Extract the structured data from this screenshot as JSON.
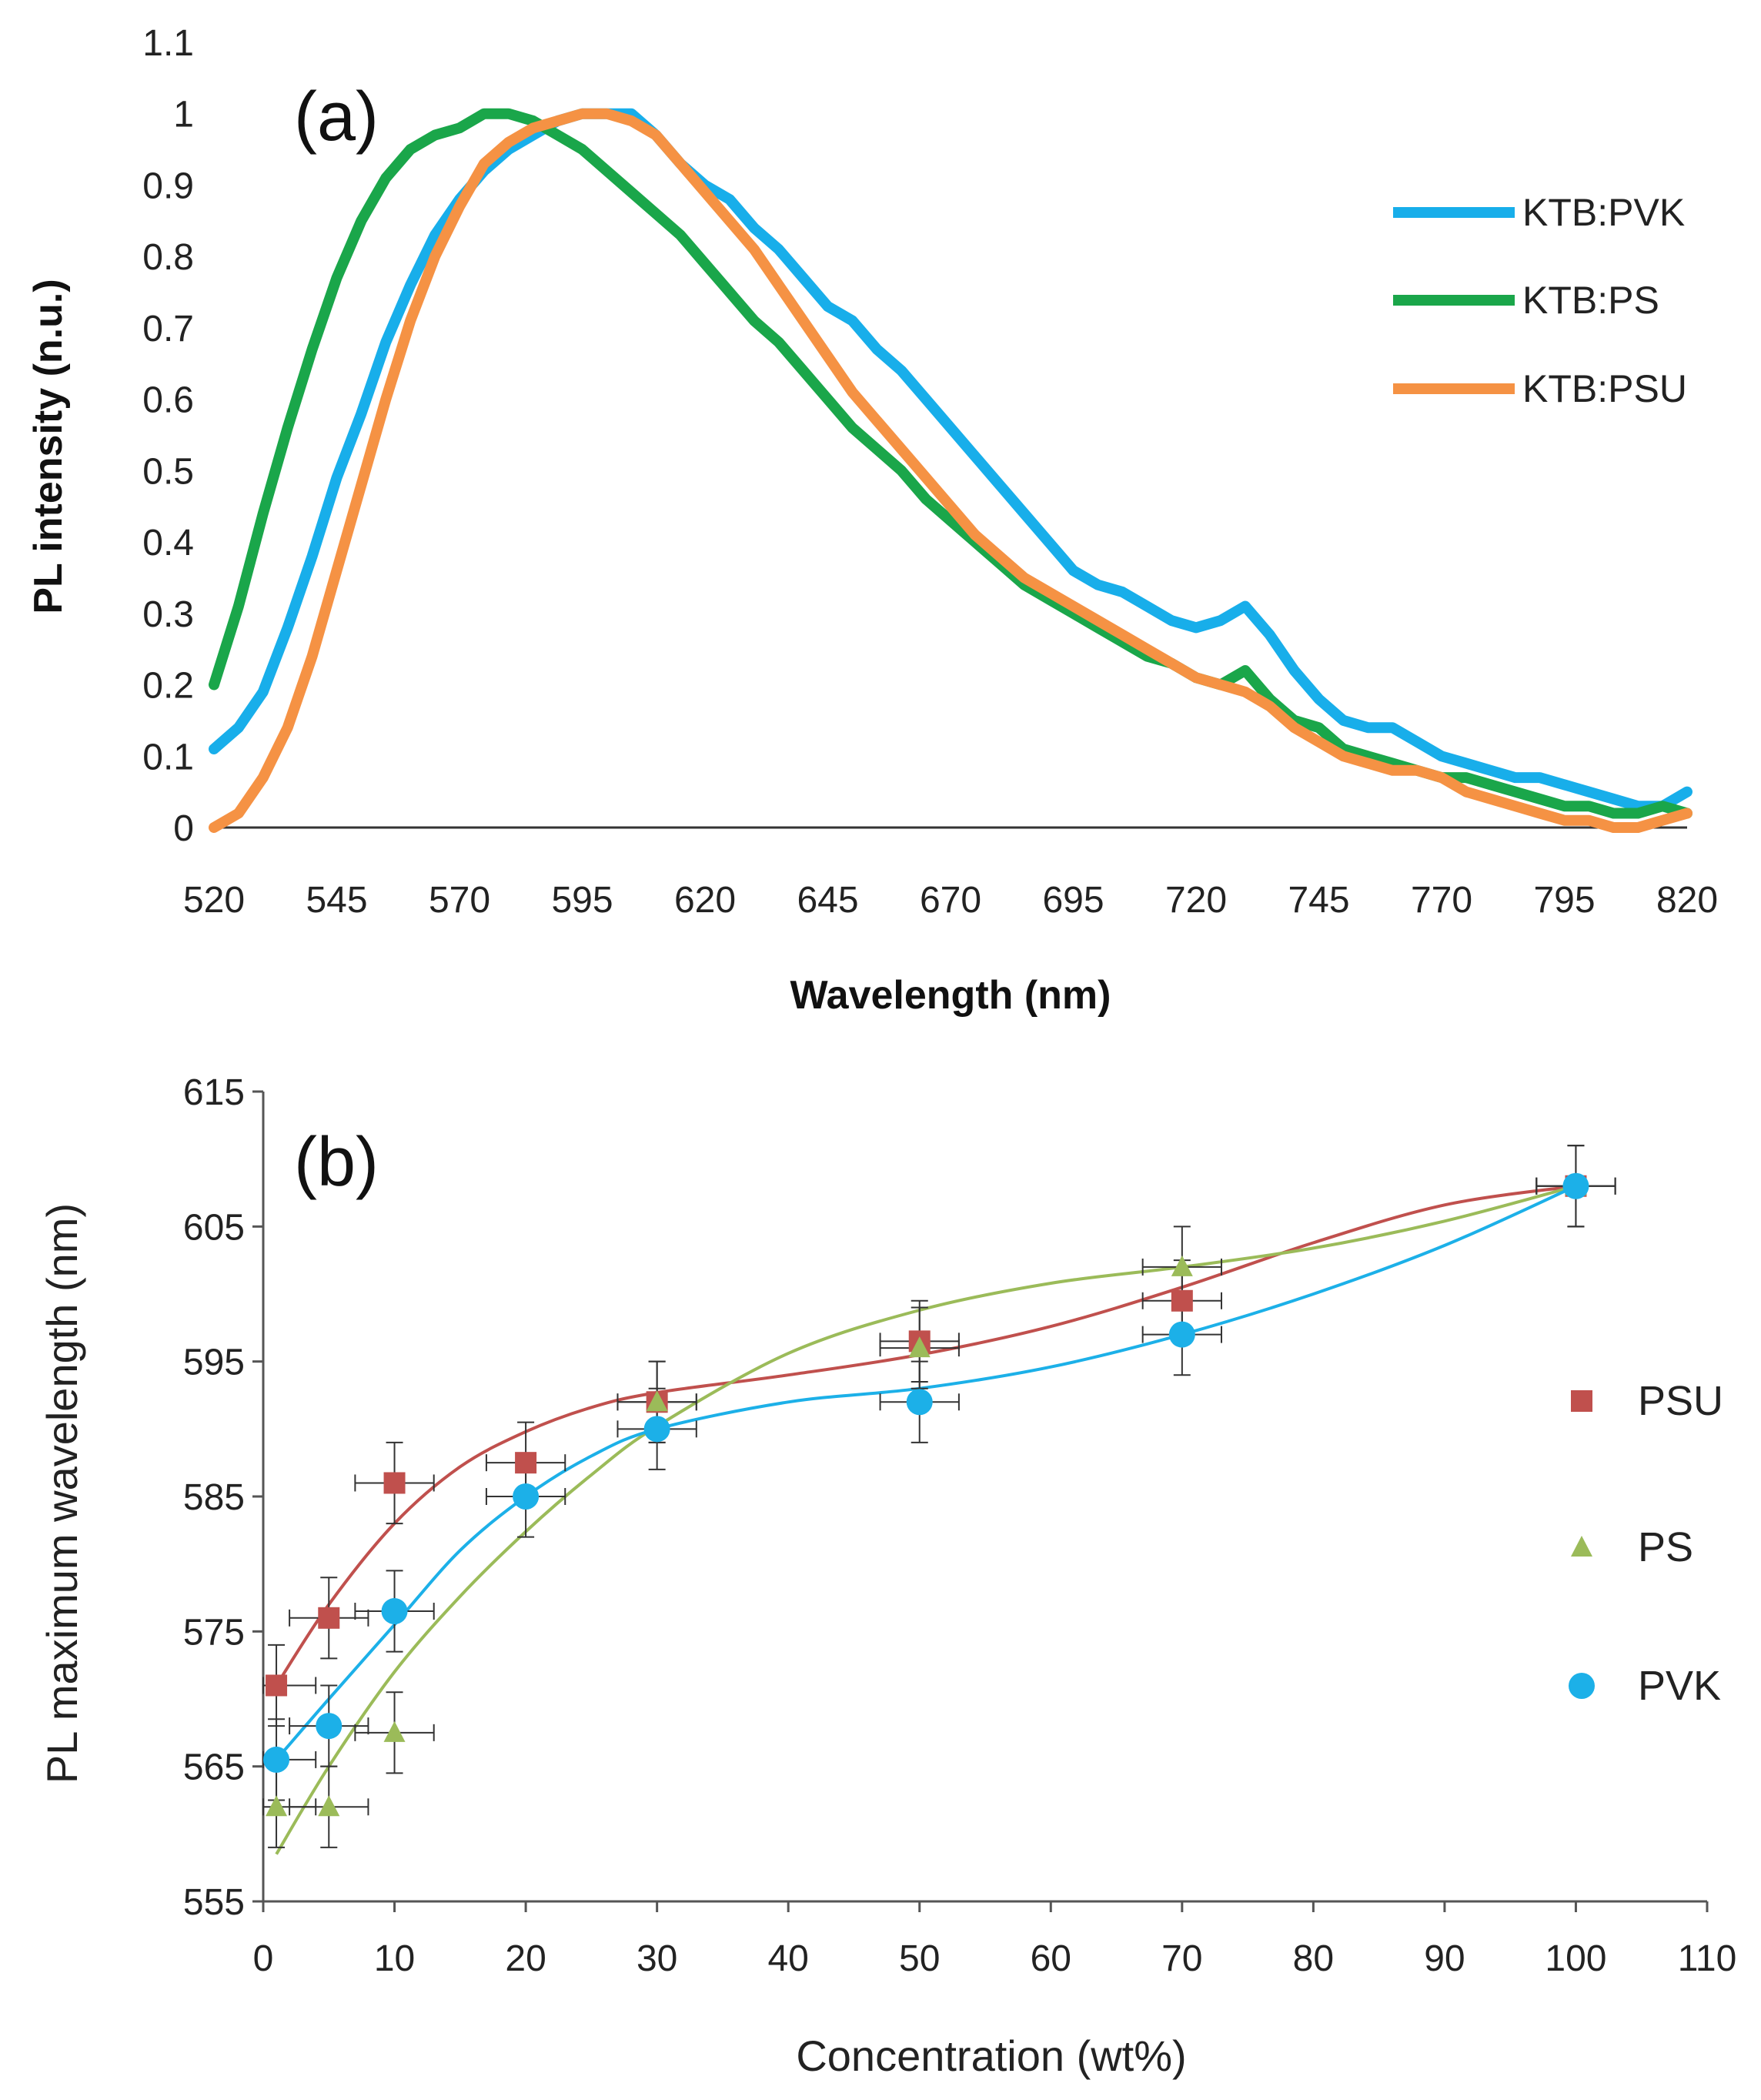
{
  "chart_data": [
    {
      "type": "line",
      "panel_label": "(a)",
      "xlabel": "Wavelength (nm)",
      "ylabel": "PL intensity (n.u.)",
      "xlim": [
        520,
        820
      ],
      "ylim": [
        0,
        1.1
      ],
      "xticks": [
        520,
        545,
        570,
        595,
        620,
        645,
        670,
        695,
        720,
        745,
        770,
        795,
        820
      ],
      "yticks": [
        0,
        0.1,
        0.2,
        0.3,
        0.4,
        0.5,
        0.6,
        0.7,
        0.8,
        0.9,
        1,
        1.1
      ],
      "ytick_labels": [
        "0",
        "0.1",
        "0.2",
        "0.3",
        "0.4",
        "0.5",
        "0.6",
        "0.7",
        "0.8",
        "0.9",
        "1",
        "1.1"
      ],
      "legend_position": "right",
      "series": [
        {
          "name": "KTB:PVK",
          "color": "#18aeea",
          "x": [
            520,
            525,
            530,
            535,
            540,
            545,
            550,
            555,
            560,
            565,
            570,
            575,
            580,
            585,
            590,
            595,
            600,
            605,
            610,
            615,
            620,
            625,
            630,
            635,
            640,
            645,
            650,
            655,
            660,
            665,
            670,
            675,
            680,
            685,
            690,
            695,
            700,
            705,
            710,
            715,
            720,
            725,
            730,
            735,
            740,
            745,
            750,
            755,
            760,
            765,
            770,
            775,
            780,
            785,
            790,
            795,
            800,
            805,
            810,
            815,
            820
          ],
          "values": [
            0.11,
            0.14,
            0.19,
            0.28,
            0.38,
            0.49,
            0.58,
            0.68,
            0.76,
            0.83,
            0.88,
            0.92,
            0.95,
            0.97,
            0.99,
            1.0,
            1.0,
            1.0,
            0.97,
            0.93,
            0.9,
            0.88,
            0.84,
            0.81,
            0.77,
            0.73,
            0.71,
            0.67,
            0.64,
            0.6,
            0.56,
            0.52,
            0.48,
            0.44,
            0.4,
            0.36,
            0.34,
            0.33,
            0.31,
            0.29,
            0.28,
            0.29,
            0.31,
            0.27,
            0.22,
            0.18,
            0.15,
            0.14,
            0.14,
            0.12,
            0.1,
            0.09,
            0.08,
            0.07,
            0.07,
            0.06,
            0.05,
            0.04,
            0.03,
            0.03,
            0.05
          ]
        },
        {
          "name": "KTB:PS",
          "color": "#1aa64a",
          "x": [
            520,
            525,
            530,
            535,
            540,
            545,
            550,
            555,
            560,
            565,
            570,
            575,
            580,
            585,
            590,
            595,
            600,
            605,
            610,
            615,
            620,
            625,
            630,
            635,
            640,
            645,
            650,
            655,
            660,
            665,
            670,
            675,
            680,
            685,
            690,
            695,
            700,
            705,
            710,
            715,
            720,
            725,
            730,
            735,
            740,
            745,
            750,
            755,
            760,
            765,
            770,
            775,
            780,
            785,
            790,
            795,
            800,
            805,
            810,
            815,
            820
          ],
          "values": [
            0.2,
            0.31,
            0.44,
            0.56,
            0.67,
            0.77,
            0.85,
            0.91,
            0.95,
            0.97,
            0.98,
            1.0,
            1.0,
            0.99,
            0.97,
            0.95,
            0.92,
            0.89,
            0.86,
            0.83,
            0.79,
            0.75,
            0.71,
            0.68,
            0.64,
            0.6,
            0.56,
            0.53,
            0.5,
            0.46,
            0.43,
            0.4,
            0.37,
            0.34,
            0.32,
            0.3,
            0.28,
            0.26,
            0.24,
            0.23,
            0.21,
            0.2,
            0.22,
            0.18,
            0.15,
            0.14,
            0.11,
            0.1,
            0.09,
            0.08,
            0.07,
            0.07,
            0.06,
            0.05,
            0.04,
            0.03,
            0.03,
            0.02,
            0.02,
            0.03,
            0.02
          ]
        },
        {
          "name": "KTB:PSU",
          "color": "#f59244",
          "x": [
            520,
            525,
            530,
            535,
            540,
            545,
            550,
            555,
            560,
            565,
            570,
            575,
            580,
            585,
            590,
            595,
            600,
            605,
            610,
            615,
            620,
            625,
            630,
            635,
            640,
            645,
            650,
            655,
            660,
            665,
            670,
            675,
            680,
            685,
            690,
            695,
            700,
            705,
            710,
            715,
            720,
            725,
            730,
            735,
            740,
            745,
            750,
            755,
            760,
            765,
            770,
            775,
            780,
            785,
            790,
            795,
            800,
            805,
            810,
            815,
            820
          ],
          "values": [
            0.0,
            0.02,
            0.07,
            0.14,
            0.24,
            0.36,
            0.48,
            0.6,
            0.71,
            0.8,
            0.87,
            0.93,
            0.96,
            0.98,
            0.99,
            1.0,
            1.0,
            0.99,
            0.97,
            0.93,
            0.89,
            0.85,
            0.81,
            0.76,
            0.71,
            0.66,
            0.61,
            0.57,
            0.53,
            0.49,
            0.45,
            0.41,
            0.38,
            0.35,
            0.33,
            0.31,
            0.29,
            0.27,
            0.25,
            0.23,
            0.21,
            0.2,
            0.19,
            0.17,
            0.14,
            0.12,
            0.1,
            0.09,
            0.08,
            0.08,
            0.07,
            0.05,
            0.04,
            0.03,
            0.02,
            0.01,
            0.01,
            0.0,
            0.0,
            0.01,
            0.02
          ]
        }
      ]
    },
    {
      "type": "scatter",
      "panel_label": "(b)",
      "xlabel": "Concentration (wt%)",
      "ylabel": "PL maximum wavelength (nm)",
      "xlim": [
        0,
        110
      ],
      "ylim": [
        555,
        615
      ],
      "xticks": [
        0,
        10,
        20,
        30,
        40,
        50,
        60,
        70,
        80,
        90,
        100,
        110
      ],
      "yticks": [
        555,
        565,
        575,
        585,
        595,
        605,
        615
      ],
      "legend_position": "right",
      "series": [
        {
          "name": "PSU",
          "marker": "square",
          "color": "#c0504d",
          "x": [
            1,
            5,
            10,
            20,
            30,
            50,
            70,
            100
          ],
          "values": [
            571,
            576,
            586,
            587.5,
            592,
            596.5,
            599.5,
            608
          ],
          "xerr": 3,
          "yerr": 3,
          "trend": [
            [
              1,
              571
            ],
            [
              5,
              577
            ],
            [
              10,
              583
            ],
            [
              15,
              587.2
            ],
            [
              20,
              589.8
            ],
            [
              25,
              591.6
            ],
            [
              30,
              592.7
            ],
            [
              40,
              594
            ],
            [
              50,
              595.5
            ],
            [
              60,
              597.6
            ],
            [
              70,
              600.5
            ],
            [
              80,
              603.8
            ],
            [
              90,
              606.6
            ],
            [
              100,
              608
            ]
          ]
        },
        {
          "name": "PS",
          "marker": "triangle",
          "color": "#9bbb59",
          "x": [
            1,
            5,
            10,
            30,
            50,
            70,
            100
          ],
          "values": [
            562,
            562,
            567.5,
            592,
            596,
            602,
            608
          ],
          "xerr": 3,
          "yerr": 3,
          "trend": [
            [
              1,
              558.5
            ],
            [
              5,
              565
            ],
            [
              10,
              572
            ],
            [
              15,
              577.6
            ],
            [
              20,
              582.4
            ],
            [
              25,
              586.6
            ],
            [
              30,
              590.2
            ],
            [
              40,
              595.6
            ],
            [
              50,
              598.8
            ],
            [
              60,
              600.8
            ],
            [
              70,
              602
            ],
            [
              80,
              603.4
            ],
            [
              90,
              605.4
            ],
            [
              100,
              608
            ]
          ]
        },
        {
          "name": "PVK",
          "marker": "circle",
          "color": "#1cb0e8",
          "x": [
            1,
            5,
            10,
            20,
            30,
            50,
            70,
            100
          ],
          "values": [
            565.5,
            568,
            576.5,
            585,
            590,
            592,
            597,
            608
          ],
          "xerr": 3,
          "yerr": 3,
          "trend": [
            [
              1,
              565.5
            ],
            [
              5,
              570
            ],
            [
              10,
              575.5
            ],
            [
              15,
              581
            ],
            [
              20,
              585
            ],
            [
              25,
              588
            ],
            [
              30,
              590
            ],
            [
              40,
              592
            ],
            [
              50,
              593
            ],
            [
              60,
              594.6
            ],
            [
              70,
              597
            ],
            [
              80,
              600
            ],
            [
              90,
              603.6
            ],
            [
              100,
              608
            ]
          ]
        }
      ]
    }
  ]
}
